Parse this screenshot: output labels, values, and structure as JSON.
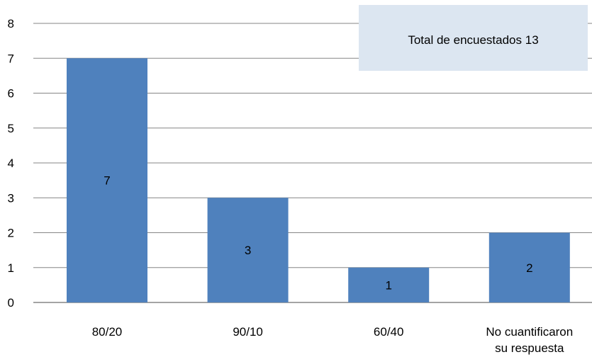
{
  "chart_data": {
    "type": "bar",
    "categories": [
      "80/20",
      "90/10",
      "60/40",
      "No cuantificaron su respuesta"
    ],
    "values": [
      7,
      3,
      1,
      2
    ],
    "ylim": [
      0,
      8
    ],
    "yticks": [
      0,
      1,
      2,
      3,
      4,
      5,
      6,
      7,
      8
    ],
    "grid": true,
    "data_labels": true,
    "annotation": "Total de encuestados 13",
    "colors": {
      "bar": "#4f81bd",
      "grid": "#868686",
      "annotation_bg": "#dce6f1"
    }
  }
}
